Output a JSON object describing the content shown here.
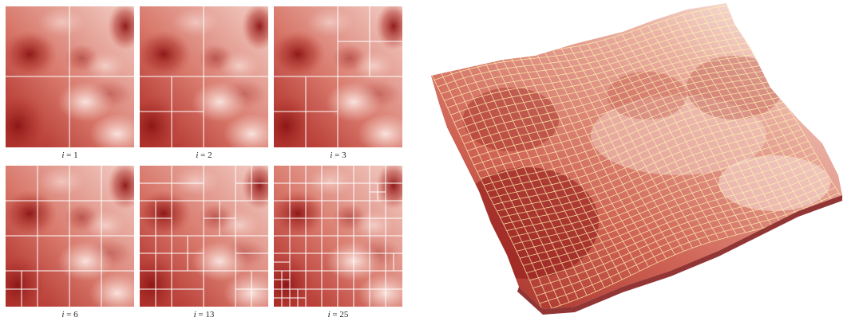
{
  "figure": {
    "panels": [
      {
        "id": "p1",
        "label_var": "i",
        "label_value": "1"
      },
      {
        "id": "p2",
        "label_var": "i",
        "label_value": "2"
      },
      {
        "id": "p3",
        "label_var": "i",
        "label_value": "3"
      },
      {
        "id": "p6",
        "label_var": "i",
        "label_value": "6"
      },
      {
        "id": "p13",
        "label_var": "i",
        "label_value": "13"
      },
      {
        "id": "p25",
        "label_var": "i",
        "label_value": "25"
      }
    ],
    "colors": {
      "terrain_dark": "#9e1a1a",
      "terrain_mid": "#d9776b",
      "terrain_light": "#f7ddd7",
      "grid_line": "#ffffff",
      "mesh_line": "#fff3b0"
    }
  }
}
